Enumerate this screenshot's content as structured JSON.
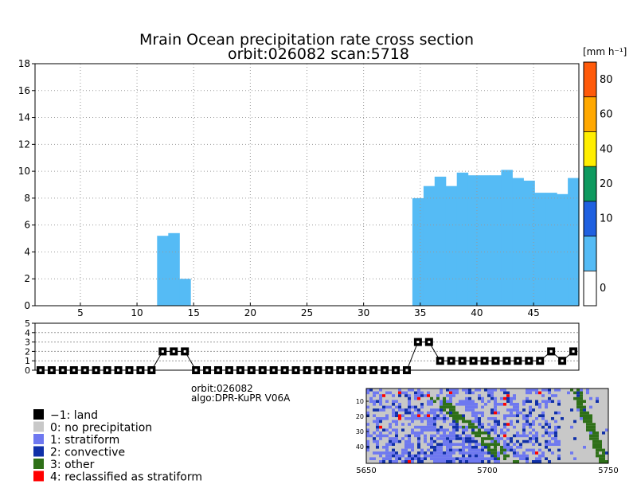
{
  "title": {
    "line1": "Mrain Ocean precipitation rate cross section",
    "line2": "orbit:026082    scan:5718"
  },
  "colorbar": {
    "unit_label": "[mm h⁻¹]",
    "bins": [
      {
        "label": "0",
        "color": "#ffffff"
      },
      {
        "label": "",
        "color": "#55bbf5"
      },
      {
        "label": "10",
        "color": "#1f60e0"
      },
      {
        "label": "20",
        "color": "#0e9a5f"
      },
      {
        "label": "40",
        "color": "#ffee00"
      },
      {
        "label": "60",
        "color": "#ffa800"
      },
      {
        "label": "80",
        "color": "#ff5a0a"
      }
    ],
    "tick_labels": [
      "0",
      "10",
      "20",
      "40",
      "60",
      "80"
    ]
  },
  "info": {
    "orbit": "orbit:026082",
    "algo": "algo:DPR-KuPR V06A"
  },
  "legend": {
    "items": [
      {
        "label": "−1: land",
        "color": "#000000"
      },
      {
        "label": "0: no precipitation",
        "color": "#c8c8c8"
      },
      {
        "label": "1: stratiform",
        "color": "#6e78f0"
      },
      {
        "label": "2: convective",
        "color": "#1030a8"
      },
      {
        "label": "3: other",
        "color": "#2e7018"
      },
      {
        "label": "4: reclassified as stratiform",
        "color": "#ff0000"
      }
    ]
  },
  "chart_data": [
    {
      "type": "heatmap",
      "name": "precipitation-cross-section",
      "xlim": [
        1,
        49
      ],
      "ylim": [
        0,
        18
      ],
      "xticks": [
        5,
        10,
        15,
        20,
        25,
        30,
        35,
        40,
        45
      ],
      "yticks": [
        0,
        2,
        4,
        6,
        8,
        10,
        12,
        14,
        16,
        18
      ],
      "grid": true,
      "precip_top_height_by_bin": [
        {
          "bin": 12,
          "top": 5.2
        },
        {
          "bin": 13,
          "top": 5.4
        },
        {
          "bin": 14,
          "top": 2.0
        },
        {
          "bin": 35,
          "top": 8.0
        },
        {
          "bin": 36,
          "top": 8.9
        },
        {
          "bin": 37,
          "top": 9.6
        },
        {
          "bin": 38,
          "top": 8.9
        },
        {
          "bin": 39,
          "top": 9.9
        },
        {
          "bin": 40,
          "top": 9.7
        },
        {
          "bin": 41,
          "top": 9.7
        },
        {
          "bin": 42,
          "top": 9.7
        },
        {
          "bin": 43,
          "top": 10.1
        },
        {
          "bin": 44,
          "top": 9.5
        },
        {
          "bin": 45,
          "top": 9.3
        },
        {
          "bin": 46,
          "top": 8.4
        },
        {
          "bin": 47,
          "top": 8.4
        },
        {
          "bin": 48,
          "top": 8.3
        },
        {
          "bin": 49,
          "top": 9.5
        }
      ]
    },
    {
      "type": "line",
      "name": "precipitation-type-strip",
      "ylim": [
        0,
        5
      ],
      "yticks": [
        0,
        1,
        2,
        3,
        4,
        5
      ],
      "x": [
        1,
        2,
        3,
        4,
        5,
        6,
        7,
        8,
        9,
        10,
        11,
        12,
        13,
        14,
        15,
        16,
        17,
        18,
        19,
        20,
        21,
        22,
        23,
        24,
        25,
        26,
        27,
        28,
        29,
        30,
        31,
        32,
        33,
        34,
        35,
        36,
        37,
        38,
        39,
        40,
        41,
        42,
        43,
        44,
        45,
        46,
        47,
        48,
        49
      ],
      "values": [
        0,
        0,
        0,
        0,
        0,
        0,
        0,
        0,
        0,
        0,
        0,
        2,
        2,
        2,
        0,
        0,
        0,
        0,
        0,
        0,
        0,
        0,
        0,
        0,
        0,
        0,
        0,
        0,
        0,
        0,
        0,
        0,
        0,
        0,
        3,
        3,
        1,
        1,
        1,
        1,
        1,
        1,
        1,
        1,
        1,
        1,
        2,
        1,
        2
      ]
    },
    {
      "type": "heatmap",
      "name": "precipitation-type-map",
      "xticks": [
        5650,
        5700,
        5750
      ],
      "yticks": [
        10,
        20,
        30,
        40
      ]
    }
  ]
}
